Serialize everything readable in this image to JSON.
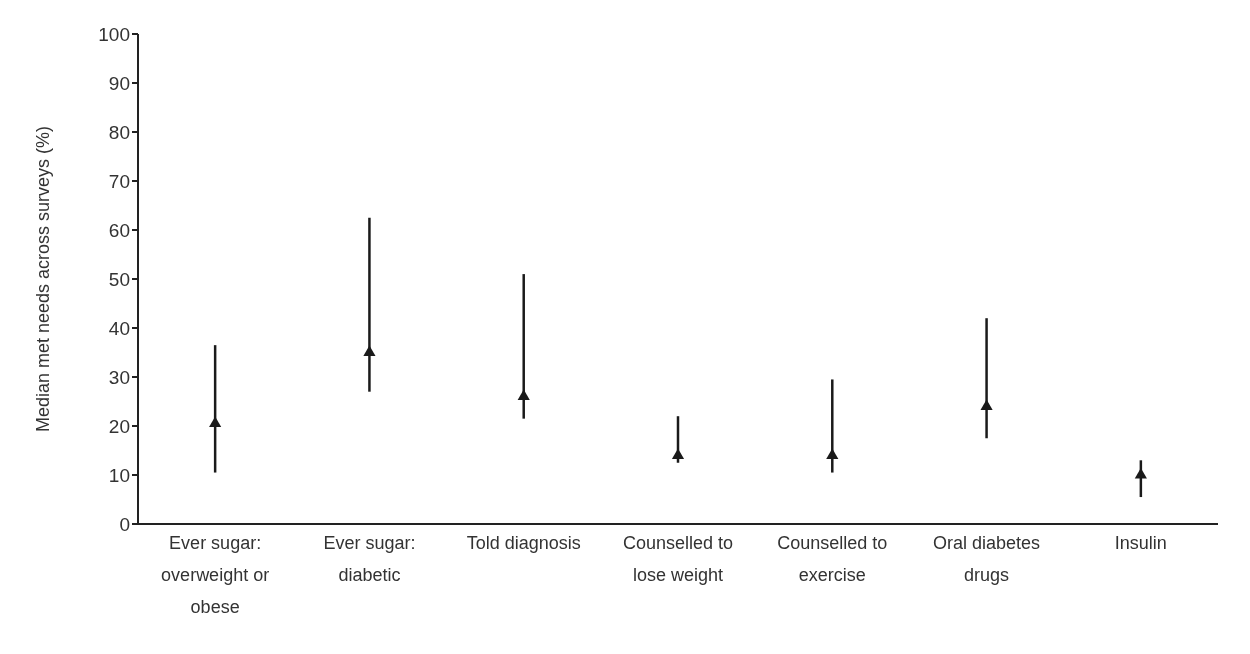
{
  "chart_data": {
    "type": "scatter",
    "ylabel": "Median met needs across surveys (%)",
    "categories": [
      "Ever sugar: overweight or obese",
      "Ever sugar: diabetic",
      "Told diagnosis",
      "Counselled to lose weight",
      "Counselled to exercise",
      "Oral diabetes drugs",
      "Insulin"
    ],
    "series": [
      {
        "color": "#1a1a1a",
        "values": [
          20.5,
          35,
          26,
          14,
          14,
          24,
          10
        ],
        "errors": [
          [
            10.5,
            36.5
          ],
          [
            27,
            62.5
          ],
          [
            21.5,
            51
          ],
          [
            12.5,
            22
          ],
          [
            10.5,
            29.5
          ],
          [
            17.5,
            42
          ],
          [
            5.5,
            13
          ]
        ]
      }
    ],
    "marker": "triangle",
    "ylim": [
      0,
      100
    ],
    "yticks": [
      0,
      10,
      20,
      30,
      40,
      50,
      60,
      70,
      80,
      90,
      100
    ],
    "grid": false,
    "legend": false
  }
}
